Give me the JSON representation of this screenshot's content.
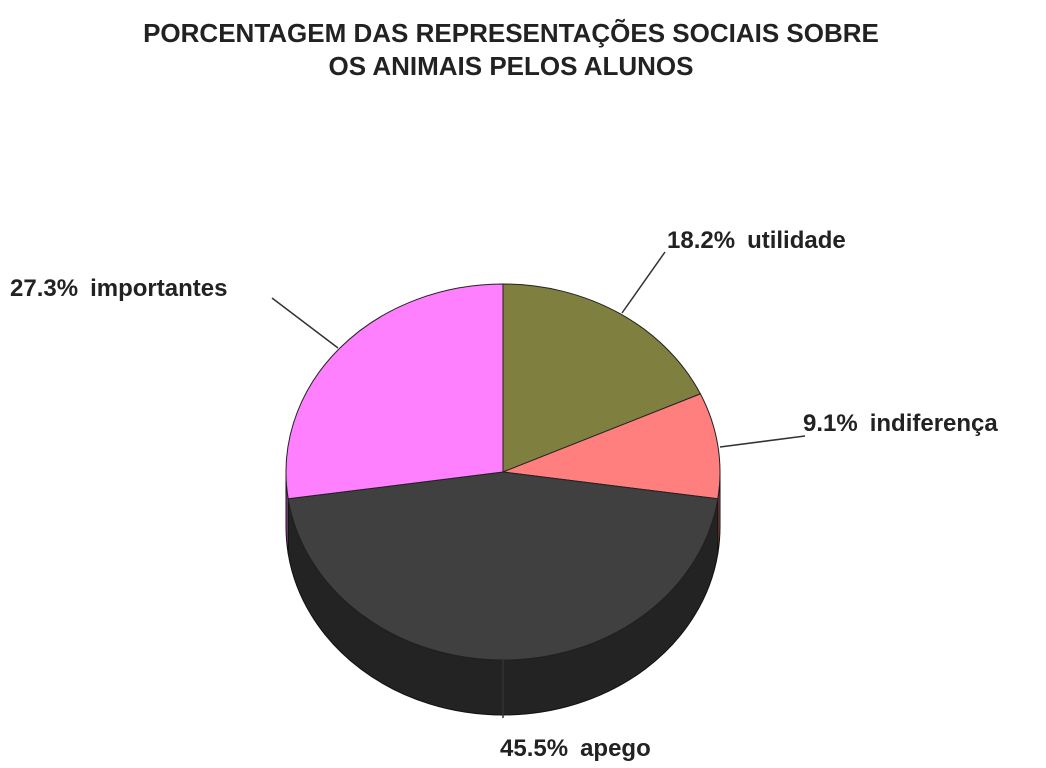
{
  "chart_data": {
    "type": "pie",
    "title": [
      "PORCENTAGEM DAS REPRESENTAÇÕES SOCIAIS SOBRE",
      "OS ANIMAIS PELOS ALUNOS"
    ],
    "categories": [
      "utilidade",
      "indiferença",
      "apego",
      "importantes"
    ],
    "values": [
      18.2,
      9.1,
      45.5,
      27.3
    ],
    "value_labels": [
      "18.2%",
      "9.1%",
      "45.5%",
      "27.3%"
    ],
    "colors": [
      "#7f7f3f",
      "#ff7f7f",
      "#404040",
      "#ff80ff"
    ]
  }
}
